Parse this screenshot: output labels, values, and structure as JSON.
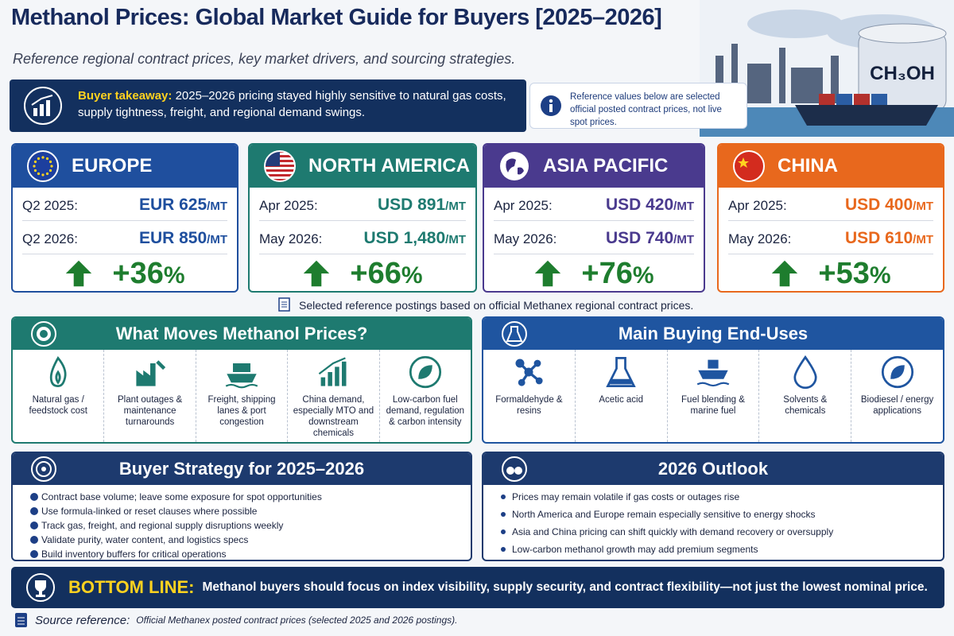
{
  "header": {
    "title": "Methanol Prices: Global Market Guide for Buyers [2025–2026]",
    "subtitle": "Reference regional contract prices, key market drivers, and sourcing strategies.",
    "image_label": "CH₃OH"
  },
  "takeaway": {
    "label": "Buyer takeaway:",
    "text": "2025–2026 pricing stayed highly sensitive to natural gas costs, supply tightness, freight, and regional demand swings."
  },
  "reference_note": "Reference values below are selected official posted contract prices, not live spot prices.",
  "regions": [
    {
      "name": "EUROPE",
      "color": "#1f4f9e",
      "rows": [
        {
          "period": "Q2 2025:",
          "price": "EUR 625",
          "unit": "/MT"
        },
        {
          "period": "Q2 2026:",
          "price": "EUR 850",
          "unit": "/MT"
        }
      ],
      "change": "+36",
      "change_unit": "%"
    },
    {
      "name": "NORTH AMERICA",
      "color": "#1e7a70",
      "rows": [
        {
          "period": "Apr 2025:",
          "price": "USD 891",
          "unit": "/MT"
        },
        {
          "period": "May 2026:",
          "price": "USD 1,480",
          "unit": "/MT"
        }
      ],
      "change": "+66",
      "change_unit": "%"
    },
    {
      "name": "ASIA PACIFIC",
      "color": "#4a3a8e",
      "rows": [
        {
          "period": "Apr 2025:",
          "price": "USD 420",
          "unit": "/MT"
        },
        {
          "period": "May 2026:",
          "price": "USD 740",
          "unit": "/MT"
        }
      ],
      "change": "+76",
      "change_unit": "%"
    },
    {
      "name": "CHINA",
      "color": "#e8681d",
      "rows": [
        {
          "period": "Apr 2025:",
          "price": "USD 400",
          "unit": "/MT"
        },
        {
          "period": "May 2026:",
          "price": "USD 610",
          "unit": "/MT"
        }
      ],
      "change": "+53",
      "change_unit": "%"
    }
  ],
  "postings_note": "Selected reference postings based on official Methanex regional contract prices.",
  "drivers": {
    "title": "What Moves Methanol Prices?",
    "items": [
      "Natural gas / feedstock cost",
      "Plant outages & maintenance turnarounds",
      "Freight, shipping lanes & port congestion",
      "China demand, especially MTO and downstream chemicals",
      "Low-carbon fuel demand, regulation & carbon intensity"
    ]
  },
  "end_uses": {
    "title": "Main Buying End-Uses",
    "items": [
      "Formaldehyde & resins",
      "Acetic acid",
      "Fuel blending & marine fuel",
      "Solvents & chemicals",
      "Biodiesel / energy applications"
    ]
  },
  "strategy": {
    "title": "Buyer Strategy for 2025–2026",
    "items": [
      "Contract base volume; leave some exposure for spot opportunities",
      "Use formula-linked or reset clauses where possible",
      "Track gas, freight, and regional supply disruptions weekly",
      "Validate purity, water content, and logistics specs",
      "Build inventory buffers for critical operations"
    ]
  },
  "outlook": {
    "title": "2026 Outlook",
    "items": [
      "Prices may remain volatile if gas costs or outages rise",
      "North America and Europe remain especially sensitive to energy shocks",
      "Asia and China pricing can shift quickly with demand recovery or oversupply",
      "Low-carbon methanol growth may add premium segments"
    ]
  },
  "bottom_line": {
    "label": "BOTTOM LINE:",
    "text": "Methanol buyers should focus on index visibility, supply security, and contract flexibility—not just the lowest nominal price."
  },
  "source": {
    "label": "Source reference:",
    "text": "Official Methanex posted contract prices (selected 2025 and 2026 postings)."
  }
}
